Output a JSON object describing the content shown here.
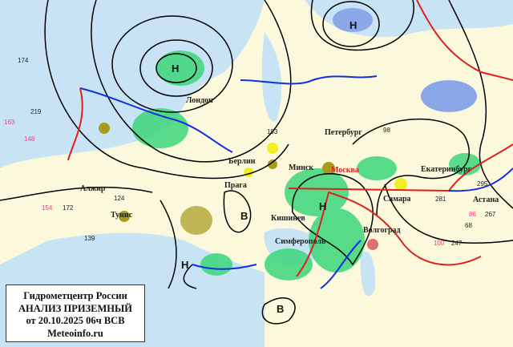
{
  "caption": {
    "org": "Гидрометцентр России",
    "title": "АНАЛИЗ ПРИЗЕМНЫЙ",
    "date": "от 20.10.2025 06ч ВСВ",
    "site": "Meteoinfo.ru"
  },
  "cities": [
    {
      "name": "Лондон"
    },
    {
      "name": "Берлин"
    },
    {
      "name": "Прага"
    },
    {
      "name": "Алжир"
    },
    {
      "name": "Тунис"
    },
    {
      "name": "Петербург"
    },
    {
      "name": "Минск"
    },
    {
      "name": "Москва"
    },
    {
      "name": "Самара"
    },
    {
      "name": "Екатеринбург"
    },
    {
      "name": "Астана"
    },
    {
      "name": "Кишинев"
    },
    {
      "name": "Волгоград"
    },
    {
      "name": "Симферополь"
    }
  ],
  "pressure_centers": {
    "low": "Н",
    "high": "В"
  },
  "colors": {
    "land": "#fbf8dc",
    "sea": "#c8e4f4",
    "isobar": "#000000",
    "cold_front": "#1030e0",
    "warm_front": "#e02020",
    "precip": "#3cd67a",
    "fog": "#a89a1c"
  },
  "station_samples": [
    "174",
    "219",
    "163",
    "148",
    "124",
    "172",
    "154",
    "139",
    "193",
    "98",
    "281",
    "295",
    "267",
    "247",
    "100",
    "86",
    "68"
  ]
}
